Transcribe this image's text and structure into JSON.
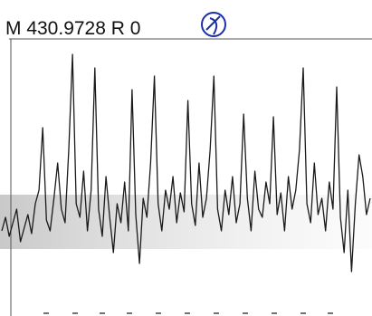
{
  "chart_data": {
    "type": "line",
    "title": "M 430.9728  R 0",
    "color": "#1a1a1a",
    "xlim": [
      0,
      99
    ],
    "ylim": [
      0,
      100
    ],
    "values": [
      30,
      35,
      28,
      33,
      38,
      26,
      31,
      36,
      29,
      40,
      45,
      68,
      34,
      30,
      42,
      55,
      38,
      33,
      60,
      95,
      40,
      35,
      52,
      30,
      45,
      90,
      38,
      28,
      50,
      35,
      22,
      40,
      33,
      48,
      30,
      82,
      36,
      18,
      42,
      35,
      55,
      87,
      40,
      30,
      45,
      38,
      50,
      33,
      44,
      37,
      78,
      40,
      32,
      55,
      35,
      42,
      60,
      87,
      38,
      30,
      45,
      36,
      50,
      33,
      40,
      73,
      42,
      30,
      52,
      38,
      35,
      48,
      40,
      72,
      36,
      44,
      30,
      50,
      38,
      45,
      60,
      90,
      40,
      33,
      55,
      36,
      42,
      30,
      48,
      38,
      83,
      35,
      22,
      45,
      15,
      40,
      58,
      50,
      36,
      42
    ]
  }
}
